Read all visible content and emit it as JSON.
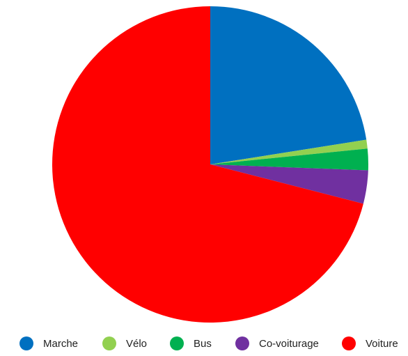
{
  "chart_data": {
    "type": "pie",
    "categories": [
      "Marche",
      "Vélo",
      "Bus",
      "Co-voiturage",
      "Voiture"
    ],
    "values": [
      22.5,
      0.9,
      2.2,
      3.4,
      71.0
    ],
    "unit": "%",
    "colors": [
      "#0070c0",
      "#92d050",
      "#00b050",
      "#7030a0",
      "#ff0000"
    ],
    "start_angle_deg": 0,
    "direction": "clockwise",
    "legend_position": "bottom",
    "title": ""
  }
}
